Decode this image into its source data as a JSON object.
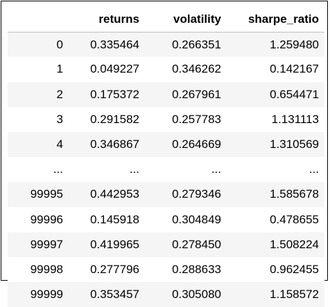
{
  "dataframe": {
    "columns": [
      "",
      "returns",
      "volatility",
      "sharpe_ratio"
    ],
    "rows": [
      [
        "0",
        "0.335464",
        "0.266351",
        "1.259480"
      ],
      [
        "1",
        "0.049227",
        "0.346262",
        "0.142167"
      ],
      [
        "2",
        "0.175372",
        "0.267961",
        "0.654471"
      ],
      [
        "3",
        "0.291582",
        "0.257783",
        "1.131113"
      ],
      [
        "4",
        "0.346867",
        "0.264669",
        "1.310569"
      ],
      [
        "...",
        "...",
        "...",
        "..."
      ],
      [
        "99995",
        "0.442953",
        "0.279346",
        "1.585678"
      ],
      [
        "99996",
        "0.145918",
        "0.304849",
        "0.478655"
      ],
      [
        "99997",
        "0.419965",
        "0.278450",
        "1.508224"
      ],
      [
        "99998",
        "0.277796",
        "0.288633",
        "0.962455"
      ],
      [
        "99999",
        "0.353457",
        "0.305080",
        "1.158572"
      ]
    ]
  }
}
